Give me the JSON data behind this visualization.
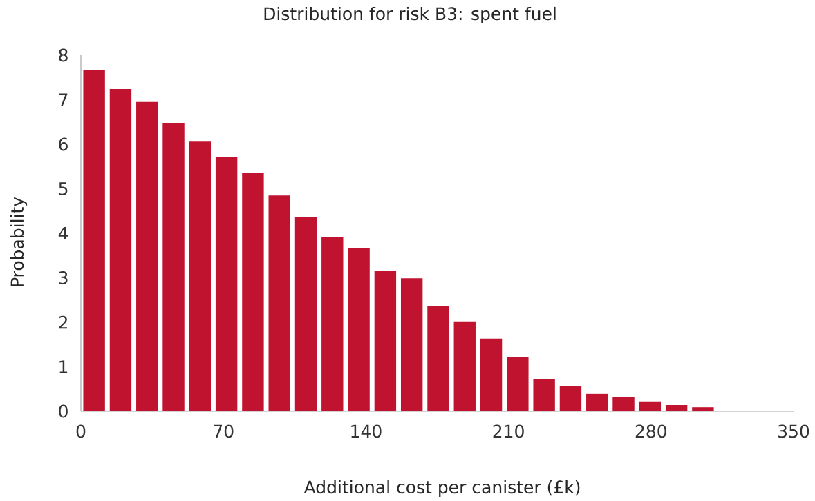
{
  "chart_data": {
    "type": "histogram",
    "title": "Distribution for risk B3: spent fuel",
    "xlabel": "Additional cost per canister (£k)",
    "ylabel": "Probability",
    "bins": [
      0,
      13,
      26,
      39,
      52,
      65,
      78,
      91,
      104,
      117,
      130,
      143,
      156,
      169,
      182,
      195,
      208,
      221,
      234,
      247,
      260,
      273,
      286,
      299,
      312
    ],
    "values": [
      7.67,
      7.24,
      6.95,
      6.48,
      6.06,
      5.71,
      5.36,
      4.85,
      4.37,
      3.91,
      3.67,
      3.15,
      2.99,
      2.37,
      2.02,
      1.63,
      1.22,
      0.73,
      0.57,
      0.39,
      0.31,
      0.22,
      0.14,
      0.09
    ],
    "color": "#c0132f",
    "xlim": [
      0,
      350
    ],
    "xticks": [
      0,
      70,
      140,
      210,
      280,
      350
    ],
    "ylim": [
      0,
      8
    ],
    "yticks": [
      0,
      1,
      2,
      3,
      4,
      5,
      6,
      7,
      8
    ],
    "grid": false
  }
}
